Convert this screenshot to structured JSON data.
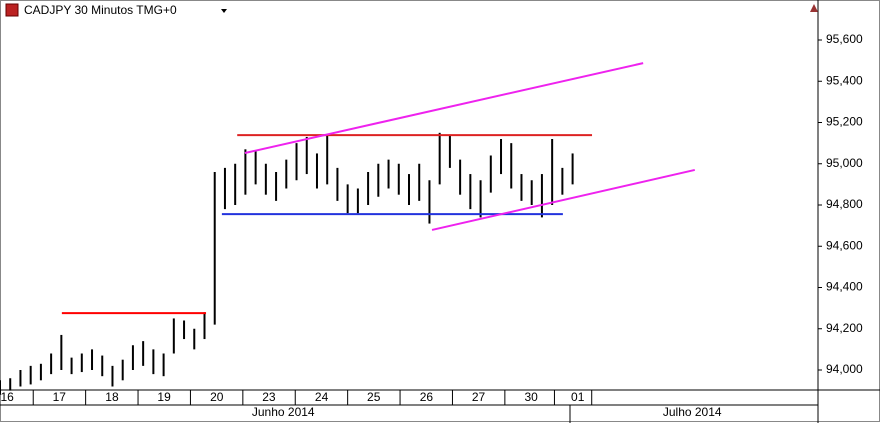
{
  "chart_data": {
    "type": "ohlc",
    "title": "CADJPY 30 Minutos TMG+0",
    "color": "#000000",
    "xlim": [
      0,
      160
    ],
    "ylim": [
      93.903,
      95.794
    ],
    "yticks": [
      {
        "value": 94.0,
        "label": "94,000"
      },
      {
        "value": 94.2,
        "label": "94,200"
      },
      {
        "value": 94.4,
        "label": "94,400"
      },
      {
        "value": 94.6,
        "label": "94,600"
      },
      {
        "value": 94.8,
        "label": "94,800"
      },
      {
        "value": 95.0,
        "label": "95,000"
      },
      {
        "value": 95.2,
        "label": "95,200"
      },
      {
        "value": 95.4,
        "label": "95,400"
      },
      {
        "value": 95.6,
        "label": "95,600"
      }
    ],
    "xticks": [
      {
        "value": 1.4,
        "label": "16"
      },
      {
        "value": 11.6,
        "label": "17"
      },
      {
        "value": 21.9,
        "label": "18"
      },
      {
        "value": 32.1,
        "label": "19"
      },
      {
        "value": 42.4,
        "label": "20"
      },
      {
        "value": 52.6,
        "label": "23"
      },
      {
        "value": 62.9,
        "label": "24"
      },
      {
        "value": 73.1,
        "label": "25"
      },
      {
        "value": 83.4,
        "label": "26"
      },
      {
        "value": 93.6,
        "label": "27"
      },
      {
        "value": 103.9,
        "label": "30"
      },
      {
        "value": 113,
        "label": "01"
      }
    ],
    "month_labels": [
      {
        "value": 55.4,
        "label": "Junho 2014"
      },
      {
        "value": 135.4,
        "label": "Julho 2014"
      }
    ],
    "x": [
      0,
      2,
      4,
      6,
      8,
      10,
      12,
      14,
      16,
      18,
      20,
      22,
      24,
      26,
      28,
      30,
      32,
      34,
      36,
      38,
      40,
      42,
      44,
      46,
      48,
      50,
      52,
      54,
      56,
      58,
      60,
      62,
      64,
      66,
      68,
      70,
      72,
      74,
      76,
      78,
      80,
      82,
      84,
      86,
      88,
      90,
      92,
      94,
      96,
      98,
      100,
      102,
      104,
      106,
      108,
      110,
      112
    ],
    "high": [
      93.95,
      93.96,
      94.0,
      94.02,
      94.03,
      94.08,
      94.17,
      94.06,
      94.08,
      94.1,
      94.07,
      94.02,
      94.05,
      94.12,
      94.14,
      94.1,
      94.08,
      94.25,
      94.24,
      94.2,
      94.28,
      94.96,
      94.98,
      95.0,
      95.07,
      95.06,
      95.0,
      94.96,
      95.02,
      95.1,
      95.13,
      95.05,
      95.14,
      94.98,
      94.9,
      94.88,
      94.96,
      95.0,
      95.02,
      95.0,
      94.95,
      95.0,
      94.92,
      95.15,
      95.14,
      95.02,
      94.95,
      94.92,
      95.04,
      95.12,
      95.1,
      94.95,
      94.92,
      94.95,
      95.12,
      94.98,
      95.05
    ],
    "low": [
      93.88,
      93.9,
      93.92,
      93.93,
      93.95,
      93.98,
      94.0,
      93.98,
      93.99,
      94.0,
      93.97,
      93.92,
      93.95,
      94.0,
      94.02,
      93.98,
      93.97,
      94.08,
      94.15,
      94.1,
      94.15,
      94.22,
      94.78,
      94.8,
      94.85,
      94.9,
      94.85,
      94.82,
      94.88,
      94.92,
      94.95,
      94.88,
      94.9,
      94.82,
      94.76,
      94.76,
      94.8,
      94.84,
      94.88,
      94.85,
      94.8,
      94.82,
      94.71,
      94.9,
      94.98,
      94.85,
      94.78,
      94.74,
      94.86,
      94.95,
      94.88,
      94.82,
      94.8,
      94.74,
      94.8,
      94.85,
      94.9
    ],
    "lines": [
      {
        "color": "#ff0000",
        "x": [
          12.1,
          40.3
        ],
        "y": [
          94.276,
          94.276
        ]
      },
      {
        "color": "#dd2222",
        "x": [
          46.4,
          115.8
        ],
        "y": [
          95.139,
          95.139
        ]
      },
      {
        "color": "#2233dd",
        "x": [
          43.4,
          110.1
        ],
        "y": [
          94.756,
          94.756
        ]
      },
      {
        "color": "#ee22ee",
        "x": [
          47.9,
          125.8
        ],
        "y": [
          95.052,
          95.488
        ]
      },
      {
        "color": "#ee22ee",
        "x": [
          84.5,
          135.9
        ],
        "y": [
          94.679,
          94.97
        ]
      }
    ]
  }
}
